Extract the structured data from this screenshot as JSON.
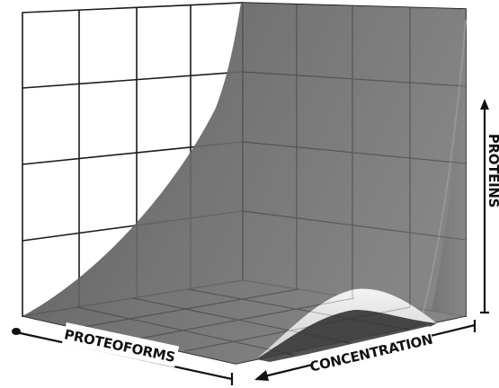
{
  "axes": {
    "proteoforms": "PROTEOFORMS",
    "concentration": "CONCENTRATION",
    "proteins": "PROTEINS"
  },
  "colors": {
    "grid_line": "#1a1a1a",
    "surface_dark": "#5c5c5c",
    "surface_mid": "#7a7a7a",
    "ridge_light": "#e6e6e6",
    "axis": "#111111"
  }
}
